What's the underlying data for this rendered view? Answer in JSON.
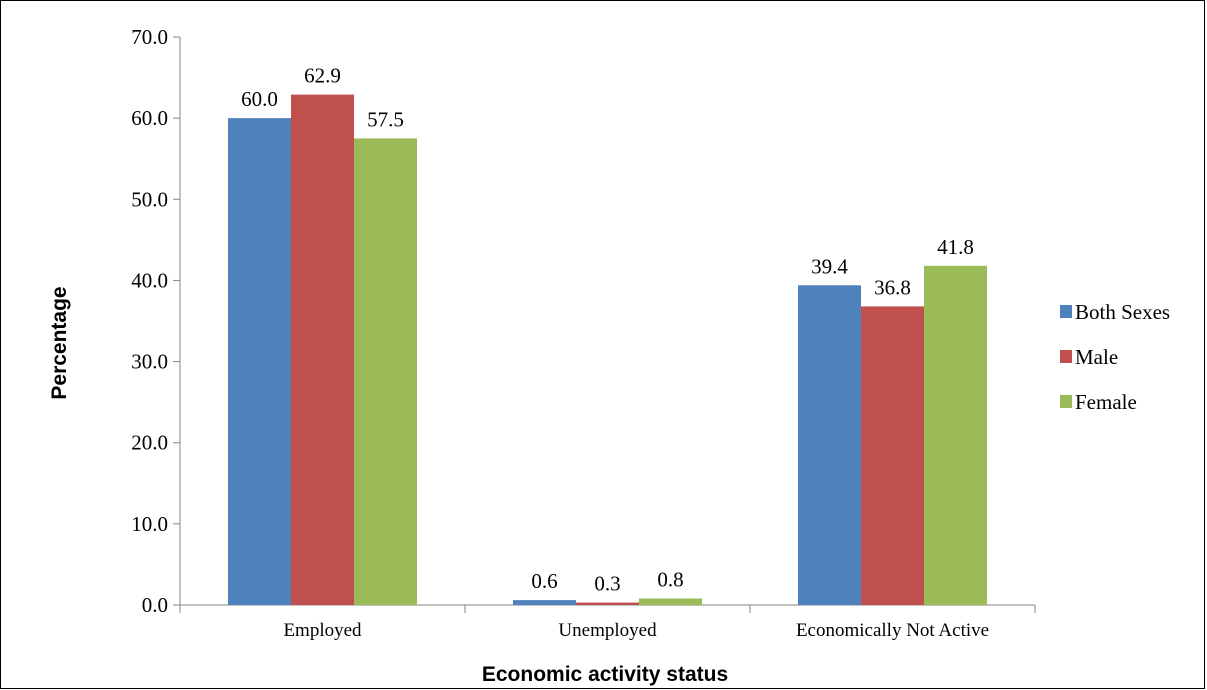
{
  "chart_data": {
    "type": "bar",
    "xlabel": "Economic activity status",
    "ylabel": "Percentage",
    "categories": [
      "Employed",
      "Unemployed",
      "Economically Not Active"
    ],
    "series": [
      {
        "name": "Both Sexes",
        "color": "#4F81BD",
        "values": [
          60.0,
          0.6,
          39.4
        ],
        "labels": [
          "60.0",
          "0.6",
          "39.4"
        ]
      },
      {
        "name": "Male",
        "color": "#C0504D",
        "values": [
          62.9,
          0.3,
          36.8
        ],
        "labels": [
          "62.9",
          "0.3",
          "36.8"
        ]
      },
      {
        "name": "Female",
        "color": "#9BBB59",
        "values": [
          57.5,
          0.8,
          41.8
        ],
        "labels": [
          "57.5",
          "0.8",
          "41.8"
        ]
      }
    ],
    "ylim": [
      0,
      70
    ],
    "yticks": [
      "0.0",
      "10.0",
      "20.0",
      "30.0",
      "40.0",
      "50.0",
      "60.0",
      "70.0"
    ],
    "grid": false,
    "legend_position": "right"
  }
}
